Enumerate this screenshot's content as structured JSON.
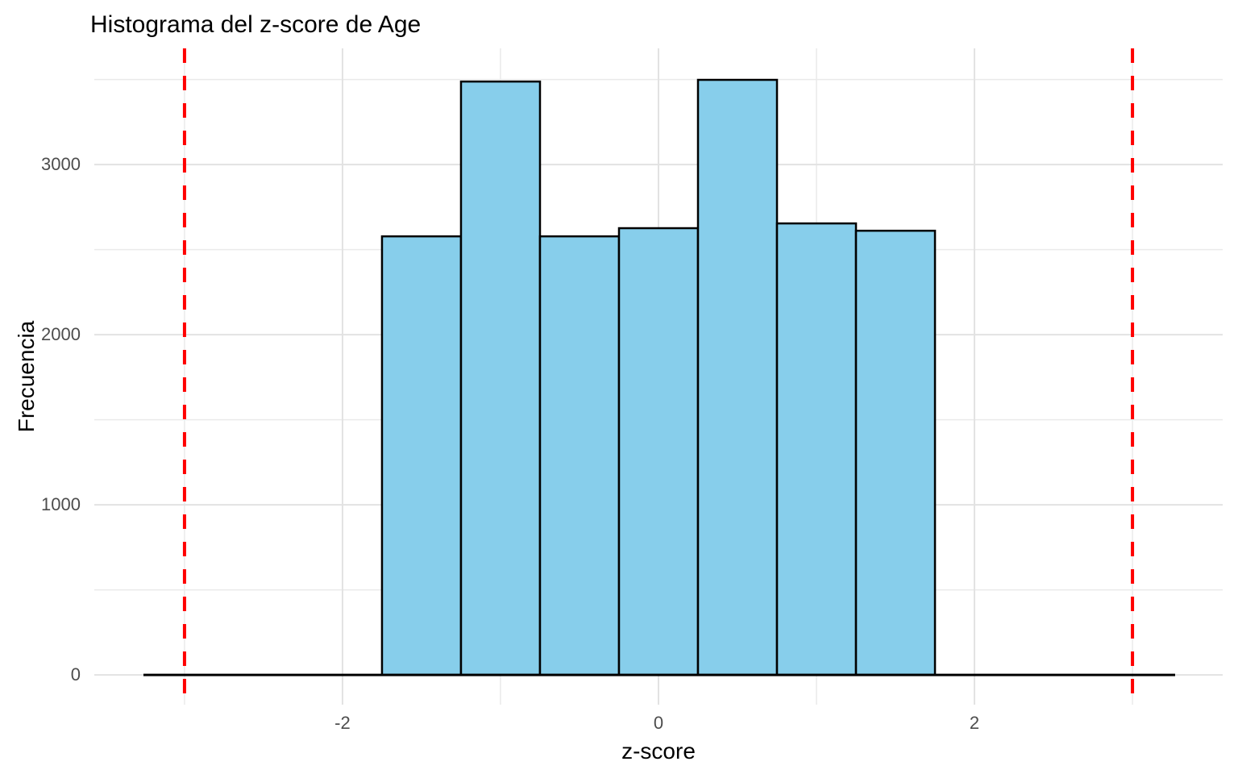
{
  "chart_data": {
    "type": "bar",
    "chart_kind": "histogram",
    "title": "Histograma del z-score de Age",
    "xlabel": "z-score",
    "ylabel": "Frecuencia",
    "grid": true,
    "legend_position": "none",
    "bins": {
      "edges": [
        -1.75,
        -1.25,
        -0.75,
        -0.25,
        0.25,
        0.75,
        1.25,
        1.75
      ],
      "counts": [
        2578,
        3488,
        2578,
        2626,
        3498,
        2654,
        2611
      ]
    },
    "x_axis": {
      "ticks": [
        -2,
        0,
        2
      ],
      "tick_labels": [
        "-2",
        "0",
        "2"
      ],
      "minor_ticks": [
        -3,
        -1,
        1,
        3
      ],
      "range": [
        -3.571,
        3.571
      ]
    },
    "y_axis": {
      "ticks": [
        0,
        1000,
        2000,
        3000
      ],
      "tick_labels": [
        "0",
        "1000",
        "2000",
        "3000"
      ],
      "minor_ticks": [
        500,
        1500,
        2500,
        3500
      ],
      "range": [
        -175,
        3683
      ]
    },
    "vlines": {
      "x": [
        -3,
        3
      ],
      "style": "dashed",
      "color": "#FF0000"
    },
    "baseline": {
      "y": 0,
      "x_span": [
        -3.26,
        3.27
      ],
      "color": "#000000"
    },
    "colors": {
      "bar_fill": "#87CEEB",
      "bar_stroke": "#000000",
      "grid_major": "#E2E2E2",
      "grid_minor": "#EAEAEA",
      "tick_label": "#4D4D4D",
      "title": "#000000",
      "background": "#FFFFFF"
    }
  }
}
